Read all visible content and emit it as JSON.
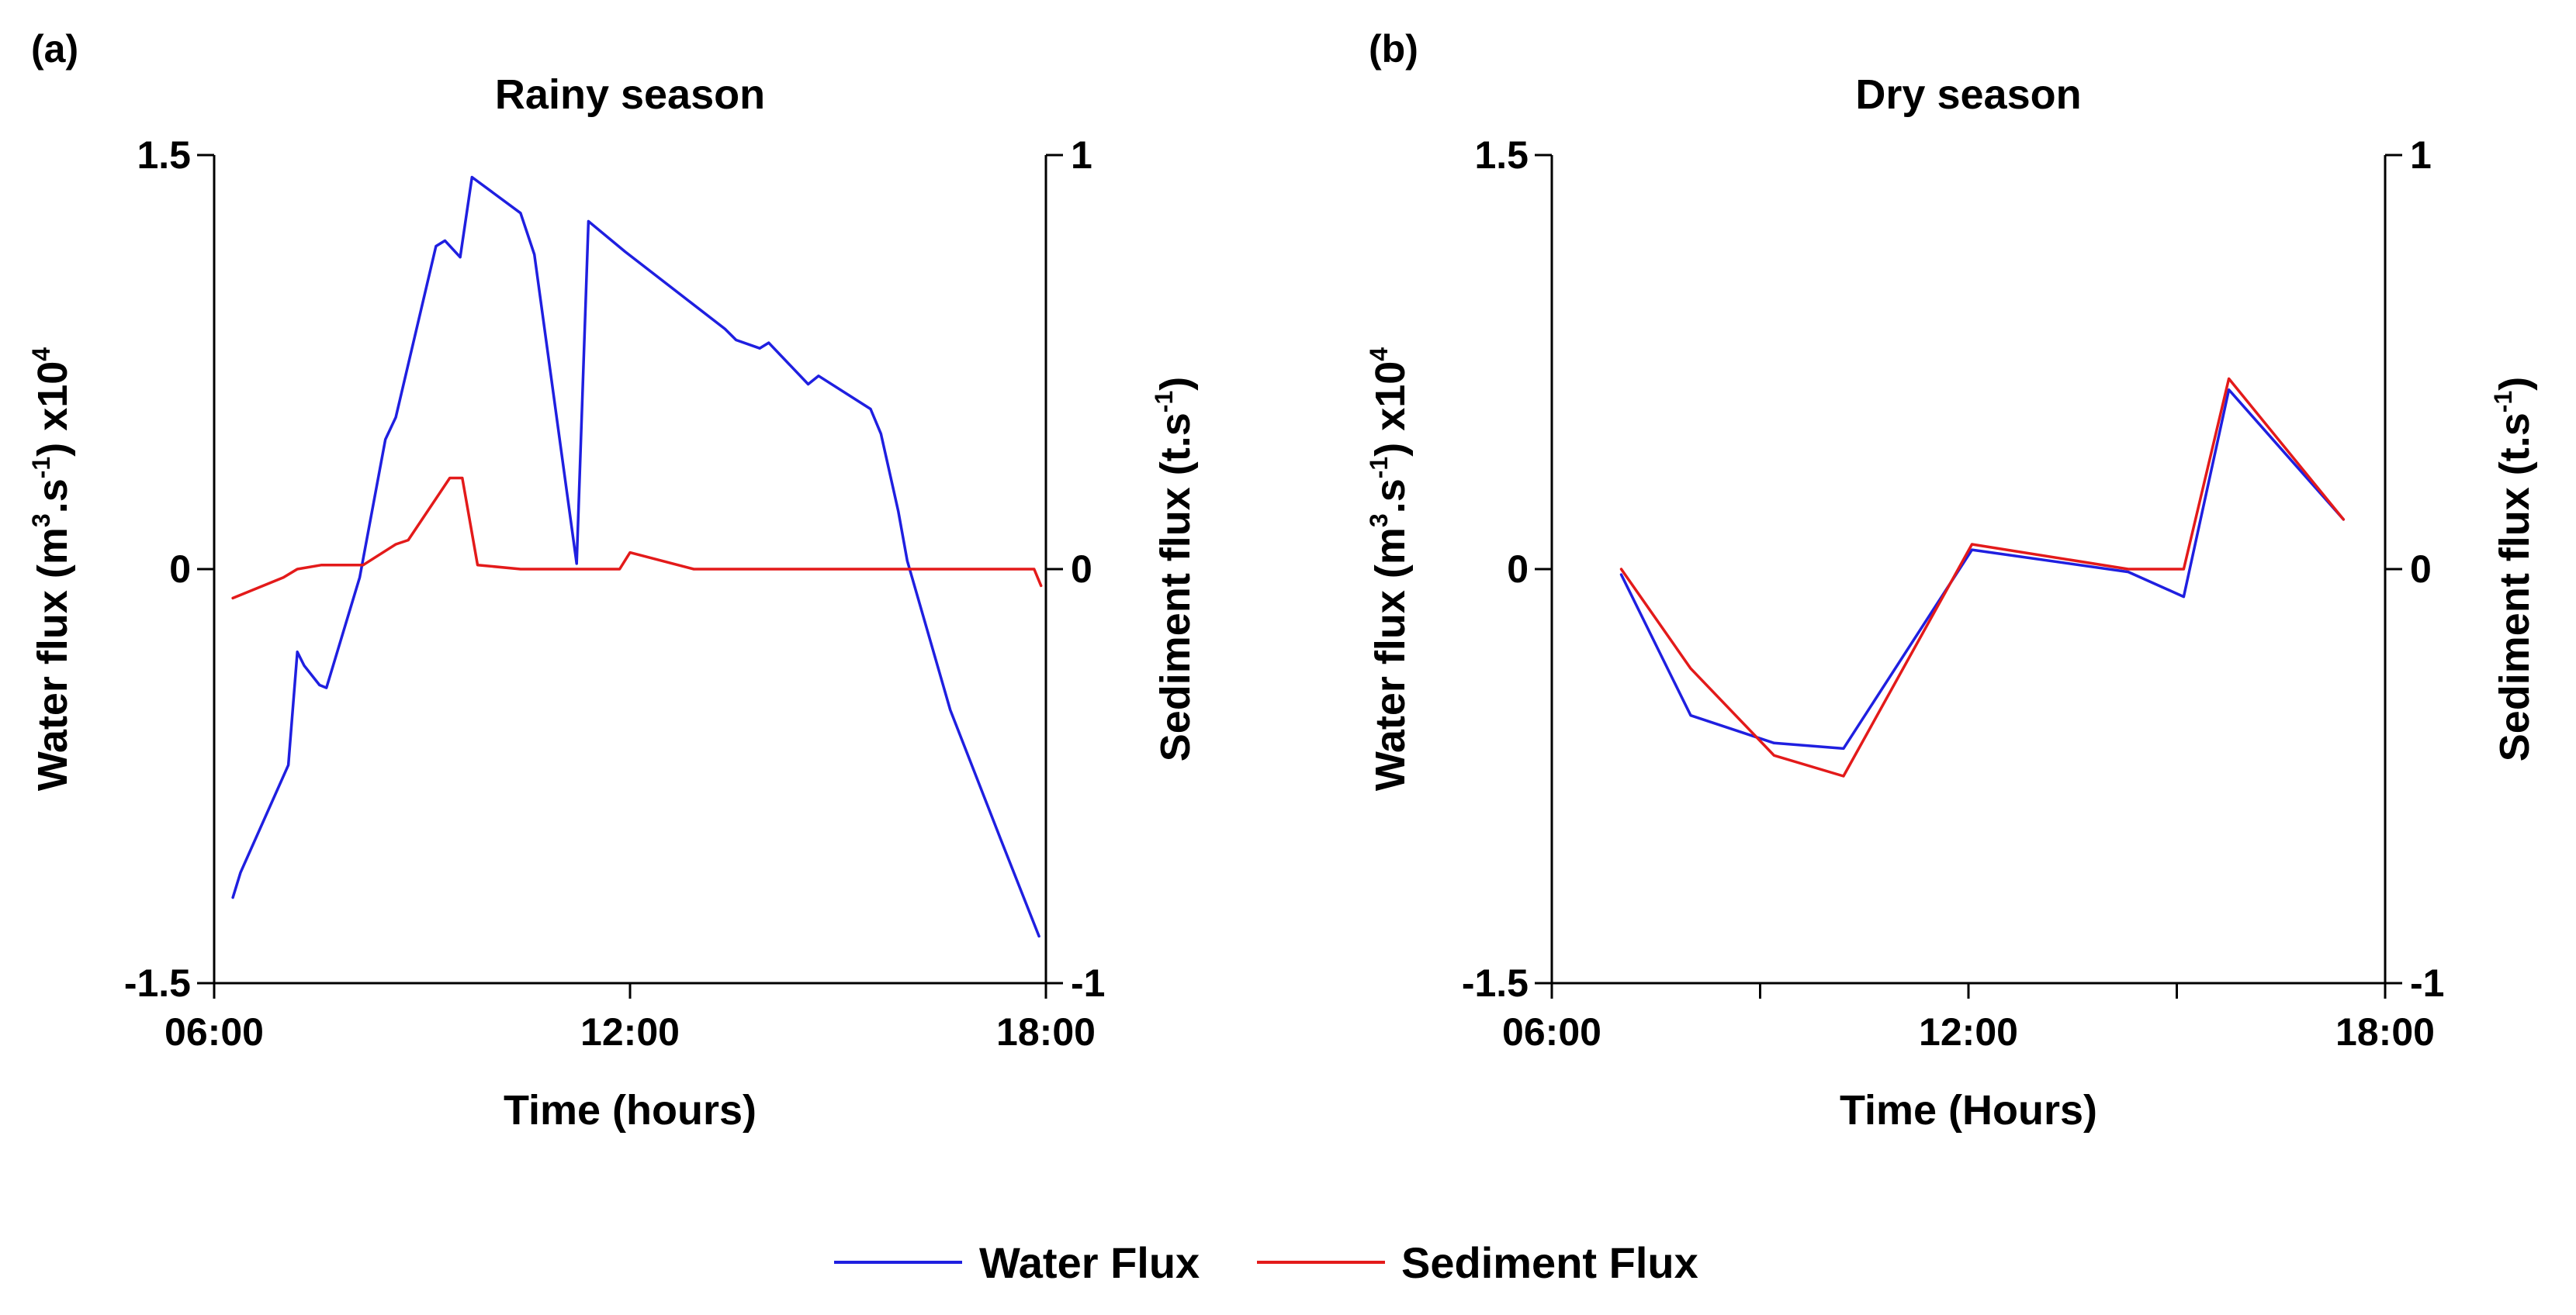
{
  "chart_data": [
    {
      "type": "line",
      "panel_label": "(a)",
      "title": "Rainy season",
      "xlabel": "Time (hours)",
      "ylabel_left": {
        "base": "Water flux (m",
        "sup1": "3",
        "mid": ".s",
        "sup2": "-1",
        "end": ") x10",
        "sup3": "4"
      },
      "ylabel_right": {
        "base": "Sediment flux (t.s",
        "sup1": "-1",
        "end": ")"
      },
      "xlim": [
        6,
        18
      ],
      "ylim_left": [
        -1.5,
        1.5
      ],
      "ylim_right": [
        -1,
        1
      ],
      "x_ticks": [
        6,
        12,
        18
      ],
      "x_tick_labels": [
        "06:00",
        "12:00",
        "18:00"
      ],
      "y_left_tick_labels": [
        "1.5",
        "0",
        "-1.5"
      ],
      "y_right_tick_labels": [
        "1",
        "0",
        "-1"
      ],
      "series": [
        {
          "name": "Water Flux",
          "axis": "left",
          "color": "#1f1fe0",
          "x": [
            6.27,
            6.38,
            7.07,
            7.2,
            7.3,
            7.52,
            7.62,
            8.1,
            8.47,
            8.62,
            9.2,
            9.33,
            9.55,
            9.72,
            10.42,
            10.62,
            11.23,
            11.4,
            11.93,
            13.37,
            13.53,
            13.87,
            14.0,
            14.57,
            14.72,
            15.47,
            15.62,
            15.87,
            16.0,
            16.62,
            17.35,
            17.9
          ],
          "y": [
            -1.19,
            -1.1,
            -0.71,
            -0.3,
            -0.35,
            -0.42,
            -0.43,
            -0.03,
            0.47,
            0.55,
            1.17,
            1.19,
            1.13,
            1.42,
            1.29,
            1.14,
            0.02,
            1.26,
            1.15,
            0.87,
            0.83,
            0.8,
            0.82,
            0.67,
            0.7,
            0.58,
            0.49,
            0.21,
            0.03,
            -0.51,
            -0.98,
            -1.33
          ]
        },
        {
          "name": "Sediment Flux",
          "axis": "right",
          "color": "#e31a1a",
          "x": [
            6.27,
            7.0,
            7.2,
            7.55,
            8.15,
            8.62,
            8.8,
            9.4,
            9.58,
            9.8,
            10.42,
            11.85,
            12.0,
            12.92,
            17.83,
            17.93
          ],
          "y": [
            -0.07,
            -0.02,
            0.0,
            0.01,
            0.01,
            0.06,
            0.07,
            0.22,
            0.22,
            0.01,
            0.0,
            0.0,
            0.04,
            0.0,
            0.0,
            -0.04
          ]
        }
      ]
    },
    {
      "type": "line",
      "panel_label": "(b)",
      "title": "Dry season",
      "xlabel": "Time (Hours)",
      "ylabel_left": {
        "base": "Water flux (m",
        "sup1": "3",
        "mid": ".s",
        "sup2": "-1",
        "end": ") x10",
        "sup3": "4"
      },
      "ylabel_right": {
        "base": "Sediment flux (t.s",
        "sup1": "-1",
        "end": ")"
      },
      "xlim": [
        6,
        18
      ],
      "ylim_left": [
        -1.5,
        1.5
      ],
      "ylim_right": [
        -1,
        1
      ],
      "x_ticks": [
        6,
        9,
        12,
        15,
        18
      ],
      "x_tick_labels": [
        "06:00",
        "",
        "12:00",
        "",
        "18:00"
      ],
      "y_left_tick_labels": [
        "1.5",
        "0",
        "-1.5"
      ],
      "y_right_tick_labels": [
        "1",
        "0",
        "-1"
      ],
      "series": [
        {
          "name": "Water Flux",
          "axis": "left",
          "color": "#1f1fe0",
          "x": [
            7.0,
            8.0,
            9.2,
            10.2,
            12.05,
            14.3,
            15.1,
            15.75,
            17.4
          ],
          "y": [
            -0.02,
            -0.53,
            -0.63,
            -0.65,
            0.07,
            -0.01,
            -0.1,
            0.65,
            0.18
          ]
        },
        {
          "name": "Sediment Flux",
          "axis": "right",
          "color": "#e31a1a",
          "x": [
            7.0,
            8.0,
            9.2,
            10.2,
            12.05,
            14.3,
            15.1,
            15.75,
            17.4
          ],
          "y": [
            0.0,
            -0.24,
            -0.45,
            -0.5,
            0.06,
            0.0,
            0.0,
            0.46,
            0.12
          ]
        }
      ]
    }
  ],
  "legend": [
    {
      "label": "Water Flux",
      "color": "#1f1fe0"
    },
    {
      "label": "Sediment Flux",
      "color": "#e31a1a"
    }
  ]
}
